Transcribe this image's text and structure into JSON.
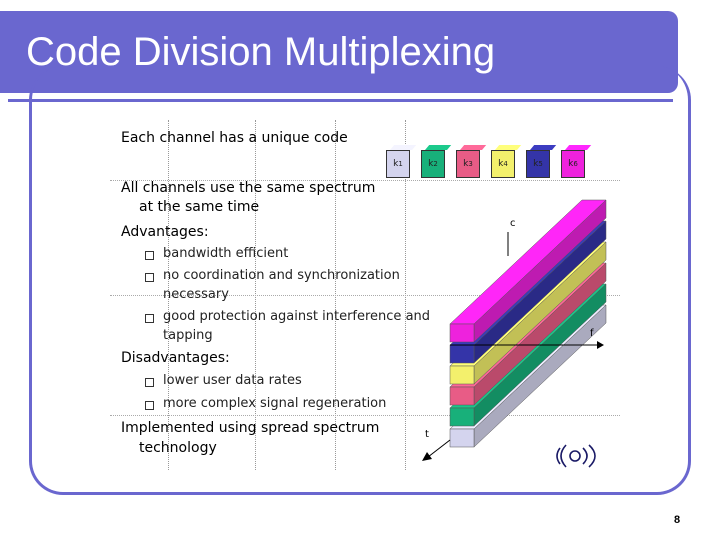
{
  "title": "Code Division Multiplexing",
  "bullets": [
    {
      "text": "Each channel has a unique code"
    },
    {
      "text": "All channels use the same spectrum",
      "cont": "at the same time"
    },
    {
      "text": "Advantages:"
    },
    {
      "text": "Disadvantages:"
    },
    {
      "text": "Implemented using spread spectrum",
      "cont": "technology"
    }
  ],
  "advantages": [
    {
      "text": "bandwidth efficient"
    },
    {
      "text": "no coordination and synchronization",
      "cont": "necessary"
    },
    {
      "text": "good protection against interference and",
      "cont": "tapping"
    }
  ],
  "disadvantages": [
    {
      "text": "lower user data rates"
    },
    {
      "text": "more complex signal regeneration"
    }
  ],
  "keys": [
    {
      "label": "k",
      "sub": "1",
      "color": "#d4d4ee"
    },
    {
      "label": "k",
      "sub": "2",
      "color": "#18b07a"
    },
    {
      "label": "k",
      "sub": "3",
      "color": "#e85c86"
    },
    {
      "label": "k",
      "sub": "4",
      "color": "#f3f06c"
    },
    {
      "label": "k",
      "sub": "5",
      "color": "#3434a8"
    },
    {
      "label": "k",
      "sub": "6",
      "color": "#ee22dd"
    }
  ],
  "axes": {
    "c": "c",
    "f": "f",
    "t": "t"
  },
  "page_number": "8"
}
